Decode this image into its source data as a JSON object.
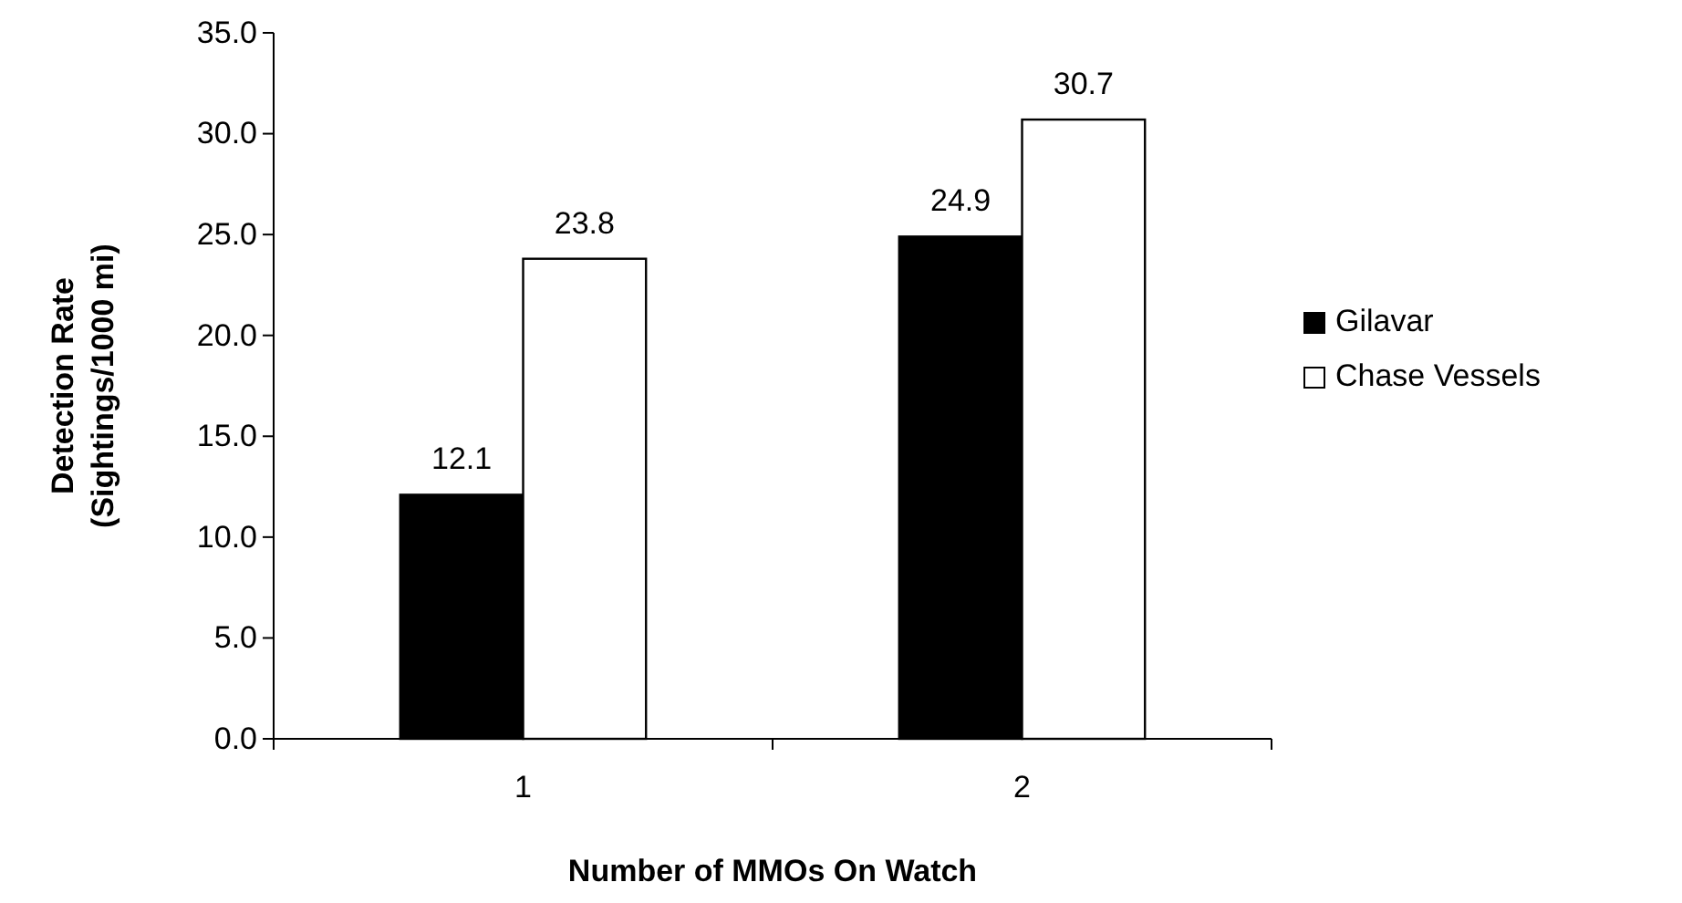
{
  "chart_data": {
    "type": "bar",
    "xlabel": "Number of MMOs On Watch",
    "ylabel": "Detection Rate\n(Sightings/1000 mi)",
    "categories": [
      "1",
      "2"
    ],
    "series": [
      {
        "name": "Gilavar",
        "color": "#000000",
        "values": [
          12.1,
          24.9
        ]
      },
      {
        "name": "Chase Vessels",
        "color": "#ffffff",
        "values": [
          23.8,
          30.7
        ]
      }
    ],
    "ylim": [
      0,
      35
    ],
    "yticks": [
      {
        "value": 0,
        "label": "0.0"
      },
      {
        "value": 5,
        "label": "5.0"
      },
      {
        "value": 10,
        "label": "10.0"
      },
      {
        "value": 15,
        "label": "15.0"
      },
      {
        "value": 20,
        "label": "20.0"
      },
      {
        "value": 25,
        "label": "25.0"
      },
      {
        "value": 30,
        "label": "30.0"
      },
      {
        "value": 35,
        "label": "35.0"
      }
    ],
    "data_labels": true,
    "legend": "right",
    "grid": false
  }
}
